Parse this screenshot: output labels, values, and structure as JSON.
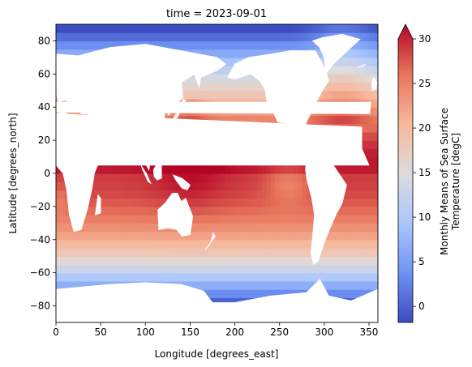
{
  "chart_data": {
    "type": "heatmap",
    "title": "time = 2023-09-01",
    "xlabel": "Longitude [degrees_east]",
    "ylabel": "Latitude [degrees_north]",
    "xlim": [
      0,
      360
    ],
    "ylim": [
      -90,
      90
    ],
    "x_ticks": [
      0,
      50,
      100,
      150,
      200,
      250,
      300,
      350
    ],
    "y_ticks": [
      -80,
      -60,
      -40,
      -20,
      0,
      20,
      40,
      60,
      80
    ],
    "colorbar": {
      "label_line1": "Monthly Means of Sea Surface",
      "label_line2": "Temperature [degC]",
      "ticks": [
        0,
        5,
        10,
        15,
        20,
        25,
        30
      ],
      "range": [
        -1.8,
        30
      ],
      "extend": "max",
      "colormap": "coolwarm",
      "colors": [
        "#3b4cc0",
        "#6f92f3",
        "#aac7fd",
        "#dddcdc",
        "#f7b89c",
        "#e7745b",
        "#b40426"
      ]
    },
    "land_color": "#ffffff",
    "grid": false,
    "continents": [
      {
        "name": "North America",
        "polygon": [
          [
            192,
            58
          ],
          [
            200,
            66
          ],
          [
            215,
            70
          ],
          [
            240,
            72
          ],
          [
            262,
            74
          ],
          [
            290,
            74
          ],
          [
            300,
            64
          ],
          [
            305,
            56
          ],
          [
            298,
            50
          ],
          [
            293,
            45
          ],
          [
            289,
            41
          ],
          [
            284,
            35
          ],
          [
            280,
            31
          ],
          [
            279,
            25
          ],
          [
            277,
            22
          ],
          [
            276,
            19
          ],
          [
            273,
            17
          ],
          [
            265,
            15
          ],
          [
            262,
            12
          ],
          [
            270,
            9
          ],
          [
            278,
            9
          ],
          [
            283,
            11
          ],
          [
            276,
            17
          ],
          [
            266,
            22
          ],
          [
            262,
            30
          ],
          [
            248,
            31
          ],
          [
            243,
            37
          ],
          [
            236,
            42
          ],
          [
            234,
            50
          ],
          [
            228,
            56
          ],
          [
            218,
            60
          ],
          [
            200,
            57
          ]
        ]
      },
      {
        "name": "Greenland",
        "polygon": [
          [
            302,
            60
          ],
          [
            310,
            66
          ],
          [
            318,
            70
          ],
          [
            330,
            76
          ],
          [
            340,
            81
          ],
          [
            320,
            84
          ],
          [
            298,
            82
          ],
          [
            287,
            80
          ],
          [
            295,
            76
          ],
          [
            300,
            70
          ]
        ]
      },
      {
        "name": "South America",
        "polygon": [
          [
            280,
            9
          ],
          [
            290,
            12
          ],
          [
            300,
            10
          ],
          [
            310,
            5
          ],
          [
            320,
            -3
          ],
          [
            325,
            -7
          ],
          [
            320,
            -18
          ],
          [
            313,
            -25
          ],
          [
            305,
            -35
          ],
          [
            300,
            -42
          ],
          [
            293,
            -53
          ],
          [
            288,
            -55
          ],
          [
            285,
            -48
          ],
          [
            287,
            -38
          ],
          [
            289,
            -25
          ],
          [
            286,
            -15
          ],
          [
            281,
            -5
          ],
          [
            279,
            2
          ]
        ]
      },
      {
        "name": "Eurasia",
        "polygon": [
          [
            0,
            50
          ],
          [
            0,
            72
          ],
          [
            25,
            71
          ],
          [
            60,
            76
          ],
          [
            100,
            78
          ],
          [
            140,
            74
          ],
          [
            180,
            70
          ],
          [
            190,
            66
          ],
          [
            180,
            62
          ],
          [
            162,
            58
          ],
          [
            160,
            52
          ],
          [
            155,
            60
          ],
          [
            140,
            55
          ],
          [
            142,
            46
          ],
          [
            135,
            42
          ],
          [
            129,
            38
          ],
          [
            126,
            35
          ],
          [
            122,
            40
          ],
          [
            121,
            30
          ],
          [
            118,
            24
          ],
          [
            110,
            20
          ],
          [
            108,
            16
          ],
          [
            106,
            10
          ],
          [
            104,
            2
          ],
          [
            100,
            6
          ],
          [
            98,
            14
          ],
          [
            94,
            17
          ],
          [
            90,
            22
          ],
          [
            86,
            20
          ],
          [
            80,
            15
          ],
          [
            77,
            8
          ],
          [
            72,
            20
          ],
          [
            66,
            25
          ],
          [
            58,
            24
          ],
          [
            56,
            27
          ],
          [
            50,
            30
          ],
          [
            49,
            27
          ],
          [
            56,
            22
          ],
          [
            59,
            20
          ],
          [
            52,
            16
          ],
          [
            44,
            12
          ],
          [
            39,
            18
          ],
          [
            34,
            29
          ],
          [
            33,
            31
          ],
          [
            36,
            36
          ],
          [
            28,
            36
          ],
          [
            26,
            40
          ],
          [
            22,
            37
          ],
          [
            18,
            40
          ],
          [
            12,
            44
          ],
          [
            8,
            44
          ],
          [
            3,
            43
          ],
          [
            0,
            49
          ]
        ]
      },
      {
        "name": "Africa",
        "polygon": [
          [
            0,
            36
          ],
          [
            10,
            37
          ],
          [
            20,
            32
          ],
          [
            32,
            31
          ],
          [
            36,
            22
          ],
          [
            42,
            12
          ],
          [
            51,
            11
          ],
          [
            43,
            0
          ],
          [
            40,
            -10
          ],
          [
            35,
            -22
          ],
          [
            28,
            -34
          ],
          [
            20,
            -35
          ],
          [
            15,
            -25
          ],
          [
            12,
            -10
          ],
          [
            8,
            0
          ],
          [
            0,
            5
          ]
        ]
      },
      {
        "name": "Africa west",
        "polygon": [
          [
            0,
            5
          ],
          [
            0,
            36
          ],
          [
            342,
            28
          ],
          [
            342,
            15
          ],
          [
            350,
            5
          ]
        ]
      },
      {
        "name": "Iberia",
        "polygon": [
          [
            351,
            36
          ],
          [
            0,
            37
          ],
          [
            0,
            43
          ],
          [
            352,
            43
          ]
        ]
      },
      {
        "name": "Australia",
        "polygon": [
          [
            114,
            -22
          ],
          [
            122,
            -18
          ],
          [
            130,
            -12
          ],
          [
            136,
            -12
          ],
          [
            140,
            -17
          ],
          [
            145,
            -15
          ],
          [
            153,
            -26
          ],
          [
            150,
            -37
          ],
          [
            141,
            -38
          ],
          [
            135,
            -34
          ],
          [
            125,
            -33
          ],
          [
            115,
            -34
          ]
        ]
      },
      {
        "name": "Antarctica",
        "polygon": [
          [
            0,
            -70
          ],
          [
            60,
            -67
          ],
          [
            100,
            -66
          ],
          [
            140,
            -67
          ],
          [
            165,
            -71
          ],
          [
            175,
            -78
          ],
          [
            200,
            -78
          ],
          [
            240,
            -74
          ],
          [
            280,
            -72
          ],
          [
            295,
            -64
          ],
          [
            305,
            -74
          ],
          [
            330,
            -77
          ],
          [
            360,
            -70
          ],
          [
            360,
            -90
          ],
          [
            0,
            -90
          ]
        ]
      },
      {
        "name": "Madagascar",
        "polygon": [
          [
            44,
            -25
          ],
          [
            47,
            -13
          ],
          [
            50,
            -15
          ],
          [
            50,
            -24
          ]
        ]
      },
      {
        "name": "Borneo",
        "polygon": [
          [
            109,
            2
          ],
          [
            114,
            7
          ],
          [
            118,
            5
          ],
          [
            118,
            -3
          ],
          [
            113,
            -4
          ],
          [
            110,
            -2
          ]
        ]
      },
      {
        "name": "Sumatra",
        "polygon": [
          [
            95,
            5
          ],
          [
            101,
            0
          ],
          [
            106,
            -6
          ],
          [
            103,
            -5
          ],
          [
            97,
            2
          ]
        ]
      },
      {
        "name": "New Guinea",
        "polygon": [
          [
            131,
            -1
          ],
          [
            141,
            -3
          ],
          [
            150,
            -7
          ],
          [
            147,
            -10
          ],
          [
            141,
            -9
          ],
          [
            134,
            -4
          ]
        ]
      },
      {
        "name": "Japan",
        "polygon": [
          [
            130,
            31
          ],
          [
            136,
            34
          ],
          [
            141,
            41
          ],
          [
            145,
            44
          ],
          [
            142,
            45
          ],
          [
            139,
            38
          ],
          [
            133,
            35
          ]
        ]
      },
      {
        "name": "Britain",
        "polygon": [
          [
            354,
            50
          ],
          [
            358,
            51
          ],
          [
            359,
            55
          ],
          [
            355,
            58
          ],
          [
            353,
            54
          ]
        ]
      },
      {
        "name": "New Zealand",
        "polygon": [
          [
            167,
            -46
          ],
          [
            174,
            -41
          ],
          [
            178,
            -38
          ],
          [
            176,
            -36
          ],
          [
            172,
            -43
          ]
        ]
      },
      {
        "name": "Iceland",
        "polygon": [
          [
            338,
            64
          ],
          [
            346,
            66
          ],
          [
            344,
            65
          ]
        ]
      }
    ]
  }
}
